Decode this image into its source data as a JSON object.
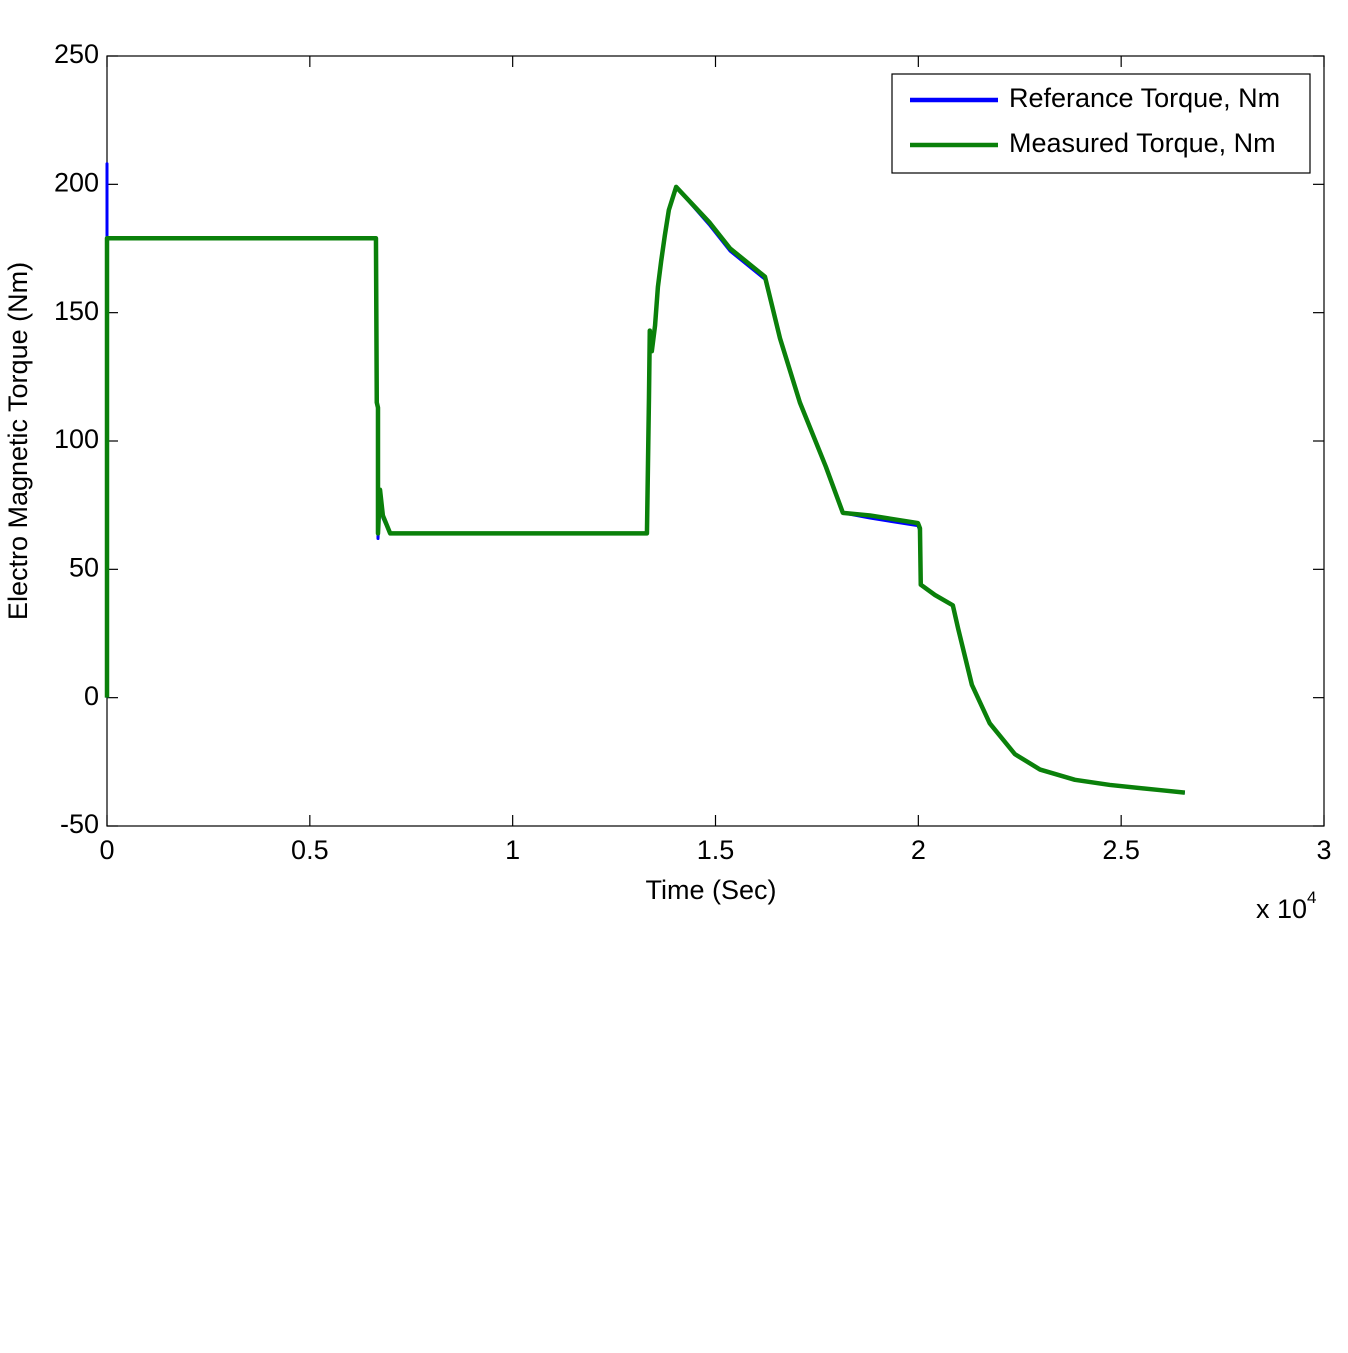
{
  "chart_data": {
    "type": "line",
    "xlabel": "Time (Sec)",
    "ylabel": "Electro Magnetic Torque (Nm)",
    "x_scale_label": {
      "base": "x 10",
      "exponent": "4"
    },
    "xlim": [
      0,
      3
    ],
    "xticks": [
      0,
      0.5,
      1,
      1.5,
      2,
      2.5,
      3
    ],
    "ylim": [
      -50,
      250
    ],
    "yticks": [
      -50,
      0,
      50,
      100,
      150,
      200,
      250
    ],
    "legend": "upper right",
    "series": [
      {
        "name": "Referance Torque, Nm",
        "color": "#0000ff",
        "x": [
          0,
          0,
          0,
          0.663,
          0.665,
          0.668,
          0.668,
          0.673,
          0.68,
          0.698,
          1.331,
          1.336,
          1.338,
          1.343,
          1.351,
          1.358,
          1.366,
          1.375,
          1.385,
          1.403,
          1.486,
          1.536,
          1.622,
          1.659,
          1.708,
          1.772,
          1.814,
          1.881,
          1.999,
          2.004,
          2.006,
          2.041,
          2.085,
          2.098,
          2.132,
          2.176,
          2.238,
          2.3,
          2.386,
          2.472,
          2.595,
          2.657
        ],
        "values": [
          0,
          208,
          179,
          179,
          116,
          113,
          62,
          80,
          70,
          64,
          64,
          117,
          143,
          135,
          145,
          160,
          170,
          180,
          190,
          199,
          184,
          174,
          163,
          140,
          115,
          90,
          72,
          70,
          67,
          65,
          44,
          40,
          36,
          27,
          5,
          -10,
          -22,
          -28,
          -32,
          -34,
          -36,
          -37
        ]
      },
      {
        "name": "Measured Torque, Nm",
        "color": "#0a800a",
        "x": [
          0,
          0,
          0,
          0.663,
          0.665,
          0.668,
          0.668,
          0.673,
          0.68,
          0.698,
          1.331,
          1.336,
          1.338,
          1.343,
          1.351,
          1.358,
          1.366,
          1.375,
          1.385,
          1.403,
          1.486,
          1.536,
          1.622,
          1.659,
          1.708,
          1.772,
          1.814,
          1.881,
          1.999,
          2.004,
          2.006,
          2.041,
          2.085,
          2.098,
          2.132,
          2.176,
          2.238,
          2.3,
          2.386,
          2.472,
          2.595,
          2.657
        ],
        "values": [
          0,
          179,
          179,
          179,
          115,
          113,
          64,
          81,
          71,
          64,
          64,
          117,
          143,
          135,
          145,
          160,
          170,
          180,
          190,
          199,
          185,
          175,
          164,
          140,
          115,
          90,
          72,
          71,
          68,
          66,
          44,
          40,
          36,
          27,
          5,
          -10,
          -22,
          -28,
          -32,
          -34,
          -36,
          -37
        ]
      }
    ]
  }
}
